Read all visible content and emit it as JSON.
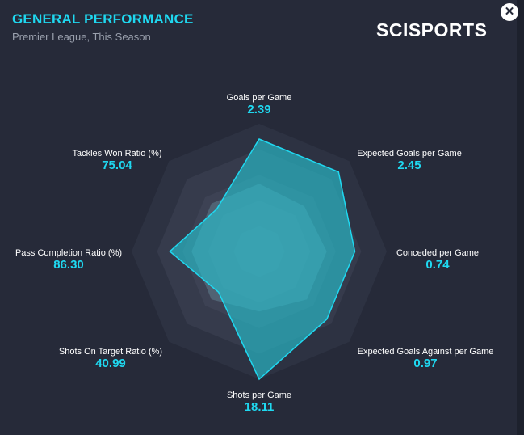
{
  "header": {
    "title": "GENERAL PERFORMANCE",
    "subtitle": "Premier League, This Season",
    "logo_text": "SCISPORTS",
    "close_icon": "close-icon"
  },
  "colors": {
    "background": "#262a39",
    "accent": "#1fd8f0",
    "fill": "#2bb6c6"
  },
  "chart_data": {
    "type": "radar",
    "grid": true,
    "axes": [
      {
        "label": "Goals per Game",
        "value_text": "2.39",
        "level": 0.88
      },
      {
        "label": "Expected Goals per Game",
        "value_text": "2.45",
        "level": 0.88
      },
      {
        "label": "Conceded per Game",
        "value_text": "0.74",
        "level": 0.75
      },
      {
        "label": "Expected Goals Against per Game",
        "value_text": "0.97",
        "level": 0.75
      },
      {
        "label": "Shots per Game",
        "value_text": "18.11",
        "level": 1.0
      },
      {
        "label": "Shots On Target Ratio (%)",
        "value_text": "40.99",
        "level": 0.45
      },
      {
        "label": "Pass Completion Ratio (%)",
        "value_text": "86.30",
        "level": 0.7
      },
      {
        "label": "Tackles Won Ratio (%)",
        "value_text": "75.04",
        "level": 0.47
      }
    ],
    "reference_levels": [
      0.53,
      0.5,
      0.53,
      0.53,
      0.47,
      0.53,
      0.53,
      0.53
    ]
  }
}
